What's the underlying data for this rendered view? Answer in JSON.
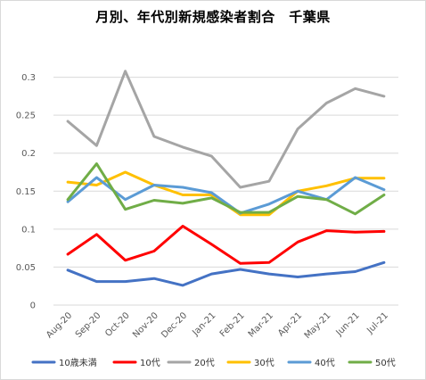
{
  "chart_data": {
    "type": "line",
    "title": "月別、年代別新規感染者割合　千葉県",
    "xlabel": "",
    "ylabel": "",
    "ylim": [
      0,
      0.35
    ],
    "yticks": [
      "0",
      "0.05",
      "0.1",
      "0.15",
      "0.2",
      "0.25",
      "0.3"
    ],
    "grid": true,
    "legend_position": "bottom",
    "categories": [
      "Aug-20",
      "Sep-20",
      "Oct-20",
      "Nov-20",
      "Dec-20",
      "Jan-21",
      "Feb-21",
      "Mar-21",
      "Apr-21",
      "May-21",
      "Jun-21",
      "Jul-21"
    ],
    "series": [
      {
        "name": "10歳未満",
        "color": "#4472c4",
        "values": [
          0.046,
          0.031,
          0.031,
          0.035,
          0.026,
          0.041,
          0.047,
          0.041,
          0.037,
          0.041,
          0.044,
          0.056
        ]
      },
      {
        "name": "10代",
        "color": "#ff0000",
        "values": [
          0.067,
          0.093,
          0.059,
          0.071,
          0.104,
          0.08,
          0.055,
          0.056,
          0.083,
          0.098,
          0.096,
          0.097
        ]
      },
      {
        "name": "20代",
        "color": "#a5a5a5",
        "values": [
          0.242,
          0.21,
          0.308,
          0.222,
          0.208,
          0.196,
          0.155,
          0.163,
          0.232,
          0.266,
          0.285,
          0.275
        ]
      },
      {
        "name": "30代",
        "color": "#ffc000",
        "values": [
          0.162,
          0.158,
          0.175,
          0.158,
          0.145,
          0.145,
          0.119,
          0.119,
          0.15,
          0.157,
          0.167,
          0.167
        ]
      },
      {
        "name": "40代",
        "color": "#5b9bd5",
        "values": [
          0.136,
          0.168,
          0.139,
          0.158,
          0.155,
          0.148,
          0.121,
          0.133,
          0.15,
          0.139,
          0.168,
          0.152
        ]
      },
      {
        "name": "50代",
        "color": "#70ad47",
        "values": [
          0.139,
          0.186,
          0.126,
          0.138,
          0.134,
          0.141,
          0.122,
          0.122,
          0.143,
          0.139,
          0.12,
          0.145
        ]
      }
    ]
  }
}
